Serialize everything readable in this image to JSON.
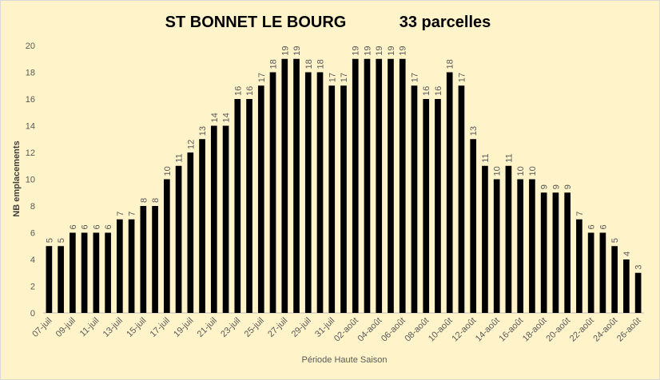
{
  "chart_data": {
    "type": "bar",
    "title": "ST BONNET LE BOURG",
    "subtitle": "33 parcelles",
    "x_label": "Période Haute Saison",
    "y_label": "NB emplacements",
    "categories": [
      "07-juil",
      null,
      "09-juil",
      null,
      "11-juil",
      null,
      "13-juil",
      null,
      "15-juil",
      null,
      "17-juil",
      null,
      "19-juil",
      null,
      "21-juil",
      null,
      "23-juil",
      null,
      "25-juil",
      null,
      "27-juil",
      null,
      "29-juil",
      null,
      "31-juil",
      null,
      "02-août",
      null,
      "04-août",
      null,
      "06-août",
      null,
      "08-août",
      null,
      "10-août",
      null,
      "12-août",
      null,
      "14-août",
      null,
      "16-août",
      null,
      "18-août",
      null,
      "20-août",
      null,
      "22-août",
      null,
      "24-août",
      null,
      "26-août"
    ],
    "values": [
      5,
      5,
      6,
      6,
      6,
      6,
      7,
      7,
      8,
      8,
      10,
      11,
      12,
      13,
      14,
      14,
      16,
      16,
      17,
      18,
      19,
      19,
      18,
      18,
      17,
      17,
      19,
      19,
      19,
      19,
      19,
      17,
      16,
      16,
      18,
      17,
      13,
      11,
      10,
      11,
      10,
      10,
      9,
      9,
      9,
      7,
      6,
      6,
      5,
      4,
      3
    ],
    "color": "#000000",
    "ylim": [
      0,
      20
    ],
    "yticks": [
      0,
      2,
      4,
      6,
      8,
      10,
      12,
      14,
      16,
      18,
      20
    ],
    "grid": false
  }
}
